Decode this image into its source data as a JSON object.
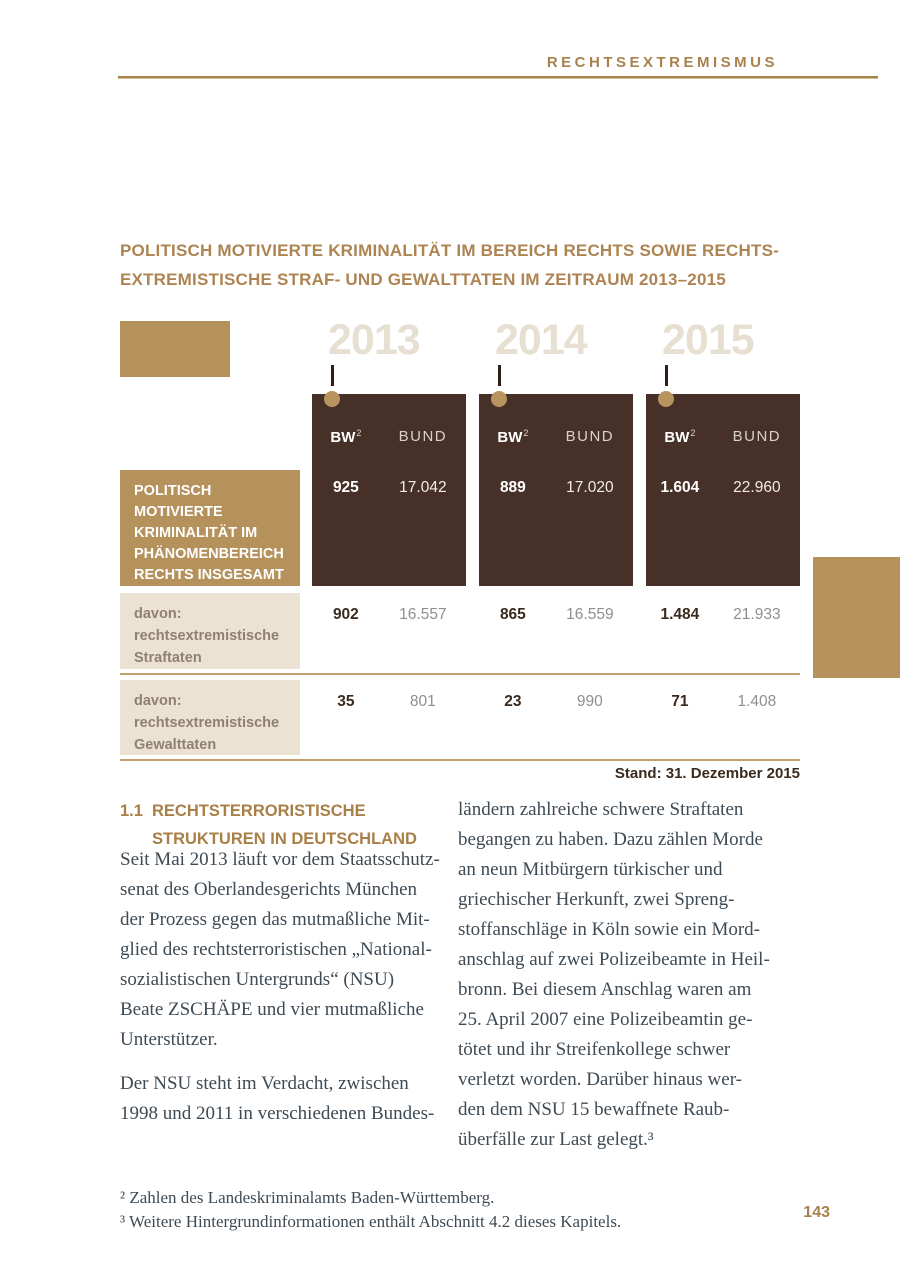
{
  "header": {
    "label": "RECHTSEXTREMISMUS"
  },
  "title": {
    "line1": "POLITISCH MOTIVIERTE KRIMINALITÄT IM BEREICH RECHTS SOWIE RECHTS-",
    "line2": "EXTREMISTISCHE STRAF- UND GEWALTTATEN IM ZEITRAUM 2013–2015"
  },
  "table": {
    "years": [
      "2013",
      "2014",
      "2015"
    ],
    "col_header": {
      "bw": "BW",
      "bw_sup": "2",
      "bund": "BUND"
    },
    "rows": [
      {
        "label": "POLITISCH MOTIVIERTE\nKRIMINALITÄT IM\nPHÄNOMENBEREICH\nRECHTS INSGESAMT",
        "values": [
          {
            "bw": "925",
            "bund": "17.042"
          },
          {
            "bw": "889",
            "bund": "17.020"
          },
          {
            "bw": "1.604",
            "bund": "22.960"
          }
        ]
      },
      {
        "label": "davon:\nrechtsextremistische\nStraftaten",
        "values": [
          {
            "bw": "902",
            "bund": "16.557"
          },
          {
            "bw": "865",
            "bund": "16.559"
          },
          {
            "bw": "1.484",
            "bund": "21.933"
          }
        ]
      },
      {
        "label": "davon:\nrechtsextremistische\nGewalttaten",
        "values": [
          {
            "bw": "35",
            "bund": "801"
          },
          {
            "bw": "23",
            "bund": "990"
          },
          {
            "bw": "71",
            "bund": "1.408"
          }
        ]
      }
    ],
    "stand": "Stand: 31. Dezember 2015"
  },
  "section": {
    "number": "1.1",
    "heading_line1": "RECHTSTERRORISTISCHE",
    "heading_line2": "STRUKTUREN IN DEUTSCHLAND",
    "left_paragraph1": "Seit Mai 2013 läuft vor dem Staatsschutz-\nsenat des Oberlandesgerichts München\nder Prozess gegen das mutmaßliche Mit-\nglied des rechtsterroristischen „National-\nsozialistischen Untergrunds“ (NSU)\nBeate ZSCHÄPE und vier mutmaßliche\nUnterstützer.",
    "left_paragraph2": "Der NSU steht im Verdacht, zwischen\n1998 und 2011 in verschiedenen Bundes-",
    "right_paragraph": "ländern zahlreiche schwere Straftaten\nbegangen zu haben. Dazu zählen Morde\nan neun Mitbürgern türkischer und\ngriechischer Herkunft, zwei Spreng-\nstoffanschläge in Köln sowie ein Mord-\nanschlag auf zwei Polizeibeamte in Heil-\nbronn. Bei diesem Anschlag waren am\n25. April 2007 eine Polizeibeamtin ge-\ntötet und ihr Streifenkollege schwer\nverletzt worden. Darüber hinaus wer-\nden dem NSU 15 bewaffnete Raub-\nüberfälle zur Last gelegt.³"
  },
  "footnotes": {
    "fn2": "² Zahlen des Landeskriminalamts Baden-Württemberg.",
    "fn3": "³ Weitere Hintergrundinformationen enthält Abschnitt 4.2 dieses Kapitels."
  },
  "page_number": "143",
  "colors": {
    "brand_brown": "#a9814e",
    "dark_brown": "#463028",
    "tan": "#b5915c",
    "beige_box": "#ece2d4",
    "year_watermark": "#e7dfd2",
    "body_text": "#3e4a54",
    "value_gray": "#8f8f8f",
    "value_dark": "#3a2a1e"
  }
}
